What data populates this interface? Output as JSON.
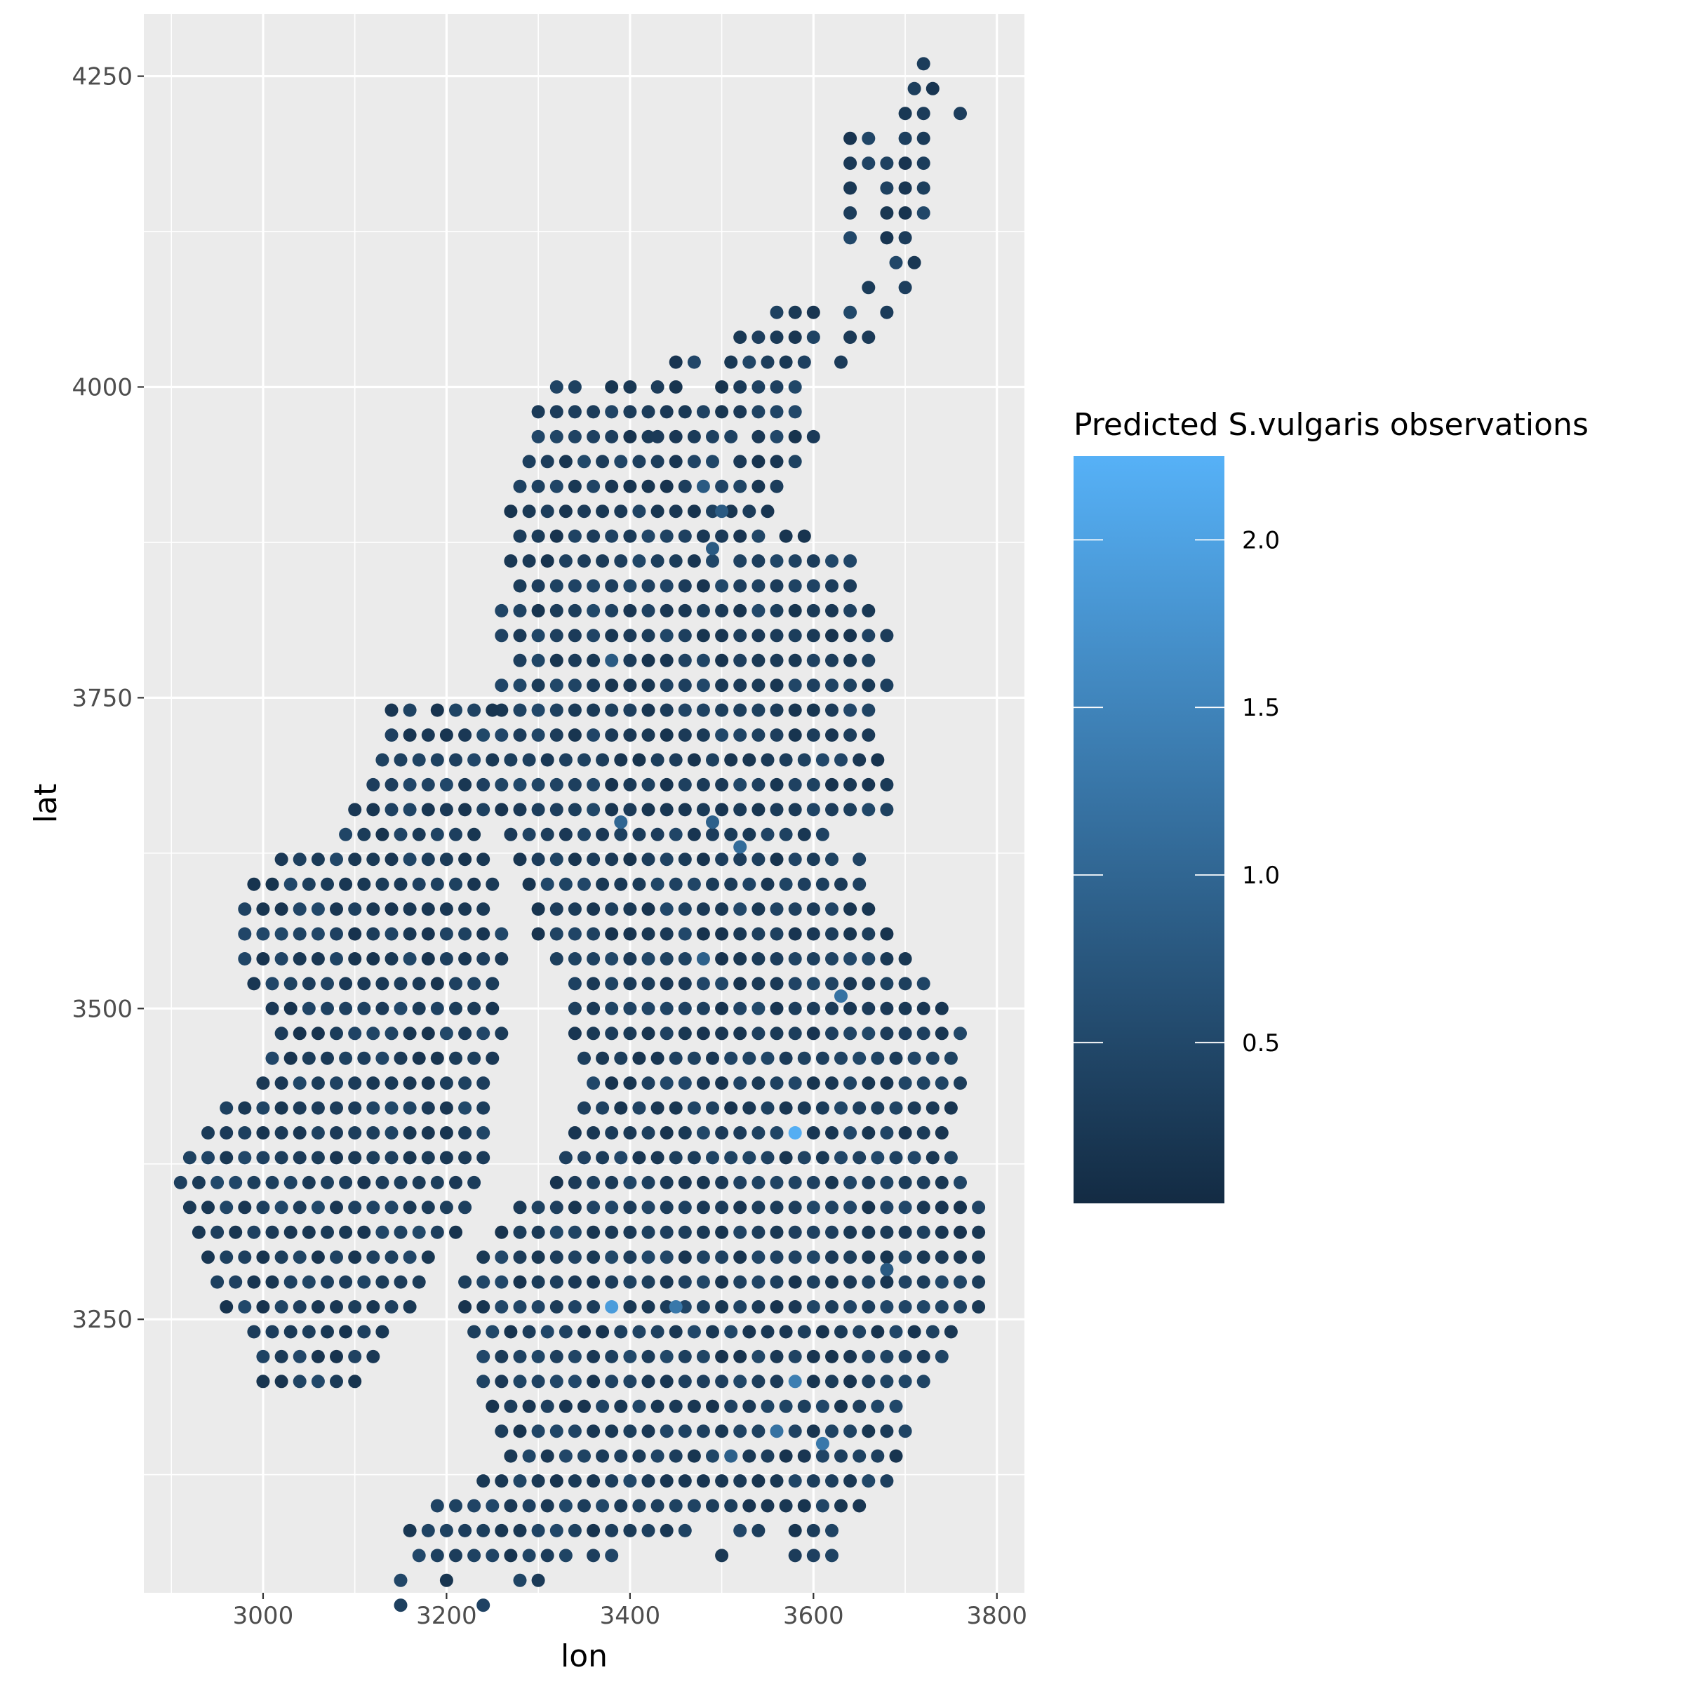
{
  "chart_data": {
    "type": "scatter",
    "title": "",
    "xlabel": "lon",
    "ylabel": "lat",
    "xlim": [
      2870,
      3830
    ],
    "ylim": [
      3030,
      4300
    ],
    "x_ticks": [
      3000,
      3200,
      3400,
      3600,
      3800
    ],
    "y_ticks": [
      3250,
      3500,
      3750,
      4000,
      4250
    ],
    "grid": true,
    "grid_step": 20,
    "legend": {
      "title": "Predicted S.vulgaris observations",
      "placement": "right",
      "type": "colorbar",
      "min": 0.02,
      "max": 2.25,
      "ticks": [
        0.5,
        1.0,
        1.5,
        2.0
      ],
      "tick_labels": [
        "0.5",
        "1.0",
        "1.5",
        "2.0"
      ],
      "color_low": "#132B43",
      "color_high": "#56B1F7"
    },
    "land_rows": [
      {
        "lat": 4260,
        "spans": [
          [
            3720,
            3720
          ]
        ]
      },
      {
        "lat": 4240,
        "spans": [
          [
            3710,
            3740
          ]
        ]
      },
      {
        "lat": 4220,
        "spans": [
          [
            3700,
            3730
          ],
          [
            3760,
            3760
          ]
        ]
      },
      {
        "lat": 4200,
        "spans": [
          [
            3640,
            3660
          ],
          [
            3700,
            3730
          ]
        ]
      },
      {
        "lat": 4180,
        "spans": [
          [
            3640,
            3660
          ],
          [
            3680,
            3730
          ]
        ]
      },
      {
        "lat": 4160,
        "spans": [
          [
            3640,
            3640
          ],
          [
            3680,
            3720
          ]
        ]
      },
      {
        "lat": 4140,
        "spans": [
          [
            3640,
            3640
          ],
          [
            3680,
            3720
          ]
        ]
      },
      {
        "lat": 4120,
        "spans": [
          [
            3640,
            3640
          ],
          [
            3680,
            3710
          ]
        ]
      },
      {
        "lat": 4100,
        "spans": [
          [
            3690,
            3710
          ]
        ]
      },
      {
        "lat": 4080,
        "spans": [
          [
            3660,
            3660
          ],
          [
            3700,
            3700
          ]
        ]
      },
      {
        "lat": 4060,
        "spans": [
          [
            3560,
            3600
          ],
          [
            3640,
            3640
          ],
          [
            3680,
            3680
          ]
        ]
      },
      {
        "lat": 4040,
        "spans": [
          [
            3520,
            3610
          ],
          [
            3640,
            3660
          ]
        ]
      },
      {
        "lat": 4020,
        "spans": [
          [
            3450,
            3470
          ],
          [
            3510,
            3600
          ],
          [
            3630,
            3630
          ]
        ]
      },
      {
        "lat": 4000,
        "spans": [
          [
            3320,
            3340
          ],
          [
            3380,
            3400
          ],
          [
            3430,
            3460
          ],
          [
            3500,
            3590
          ]
        ]
      },
      {
        "lat": 3980,
        "spans": [
          [
            3300,
            3360
          ],
          [
            3380,
            3410
          ],
          [
            3420,
            3520
          ],
          [
            3540,
            3590
          ]
        ]
      },
      {
        "lat": 3960,
        "spans": [
          [
            3300,
            3420
          ],
          [
            3430,
            3520
          ],
          [
            3540,
            3580
          ],
          [
            3600,
            3600
          ]
        ]
      },
      {
        "lat": 3940,
        "spans": [
          [
            3290,
            3500
          ],
          [
            3520,
            3580
          ]
        ]
      },
      {
        "lat": 3920,
        "spans": [
          [
            3280,
            3560
          ]
        ]
      },
      {
        "lat": 3900,
        "spans": [
          [
            3270,
            3510
          ],
          [
            3530,
            3560
          ]
        ]
      },
      {
        "lat": 3880,
        "spans": [
          [
            3280,
            3550
          ],
          [
            3570,
            3600
          ]
        ]
      },
      {
        "lat": 3860,
        "spans": [
          [
            3270,
            3500
          ],
          [
            3520,
            3640
          ]
        ]
      },
      {
        "lat": 3840,
        "spans": [
          [
            3280,
            3640
          ]
        ]
      },
      {
        "lat": 3820,
        "spans": [
          [
            3260,
            3660
          ]
        ]
      },
      {
        "lat": 3800,
        "spans": [
          [
            3260,
            3680
          ]
        ]
      },
      {
        "lat": 3780,
        "spans": [
          [
            3280,
            3660
          ]
        ]
      },
      {
        "lat": 3760,
        "spans": [
          [
            3260,
            3680
          ]
        ]
      },
      {
        "lat": 3740,
        "spans": [
          [
            3260,
            3670
          ]
        ]
      },
      {
        "lat": 3720,
        "spans": [
          [
            3260,
            3670
          ]
        ]
      },
      {
        "lat": 3700,
        "spans": [
          [
            3250,
            3680
          ]
        ]
      },
      {
        "lat": 3680,
        "spans": [
          [
            3260,
            3680
          ]
        ]
      },
      {
        "lat": 3660,
        "spans": [
          [
            3260,
            3680
          ]
        ]
      },
      {
        "lat": 3640,
        "spans": [
          [
            3270,
            3620
          ]
        ]
      },
      {
        "lat": 3620,
        "spans": [
          [
            3280,
            3620
          ],
          [
            3650,
            3660
          ]
        ]
      },
      {
        "lat": 3600,
        "spans": [
          [
            3290,
            3660
          ]
        ]
      },
      {
        "lat": 3580,
        "spans": [
          [
            3300,
            3670
          ]
        ]
      },
      {
        "lat": 3560,
        "spans": [
          [
            3300,
            3690
          ]
        ]
      },
      {
        "lat": 3540,
        "spans": [
          [
            3320,
            3700
          ]
        ]
      },
      {
        "lat": 3520,
        "spans": [
          [
            3340,
            3720
          ]
        ]
      },
      {
        "lat": 3500,
        "spans": [
          [
            3340,
            3740
          ]
        ]
      },
      {
        "lat": 3480,
        "spans": [
          [
            3340,
            3760
          ]
        ]
      },
      {
        "lat": 3460,
        "spans": [
          [
            3350,
            3750
          ]
        ]
      },
      {
        "lat": 3440,
        "spans": [
          [
            3360,
            3760
          ]
        ]
      },
      {
        "lat": 3420,
        "spans": [
          [
            3350,
            3750
          ]
        ]
      },
      {
        "lat": 3400,
        "spans": [
          [
            3340,
            3740
          ]
        ]
      },
      {
        "lat": 3380,
        "spans": [
          [
            3330,
            3760
          ]
        ]
      },
      {
        "lat": 3360,
        "spans": [
          [
            3320,
            3760
          ]
        ]
      },
      {
        "lat": 3340,
        "spans": [
          [
            3280,
            3780
          ]
        ]
      },
      {
        "lat": 3320,
        "spans": [
          [
            3260,
            3780
          ]
        ]
      },
      {
        "lat": 3300,
        "spans": [
          [
            3240,
            3790
          ]
        ]
      },
      {
        "lat": 3280,
        "spans": [
          [
            3220,
            3790
          ]
        ]
      },
      {
        "lat": 3260,
        "spans": [
          [
            3220,
            3780
          ]
        ]
      },
      {
        "lat": 3240,
        "spans": [
          [
            3230,
            3760
          ]
        ]
      },
      {
        "lat": 3220,
        "spans": [
          [
            3240,
            3740
          ]
        ]
      },
      {
        "lat": 3200,
        "spans": [
          [
            3240,
            3720
          ]
        ]
      },
      {
        "lat": 3180,
        "spans": [
          [
            3250,
            3700
          ]
        ]
      },
      {
        "lat": 3160,
        "spans": [
          [
            3260,
            3700
          ]
        ]
      },
      {
        "lat": 3140,
        "spans": [
          [
            3270,
            3700
          ]
        ]
      },
      {
        "lat": 3120,
        "spans": [
          [
            3240,
            3680
          ]
        ]
      },
      {
        "lat": 3100,
        "spans": [
          [
            3190,
            3660
          ]
        ]
      },
      {
        "lat": 3080,
        "spans": [
          [
            3160,
            3420
          ],
          [
            3440,
            3460
          ],
          [
            3520,
            3540
          ],
          [
            3580,
            3620
          ]
        ]
      },
      {
        "lat": 3060,
        "spans": [
          [
            3170,
            3330
          ],
          [
            3360,
            3390
          ],
          [
            3500,
            3500
          ],
          [
            3580,
            3600
          ],
          [
            3620,
            3620
          ]
        ]
      },
      {
        "lat": 3040,
        "spans": [
          [
            3150,
            3150
          ],
          [
            3200,
            3210
          ],
          [
            3280,
            3300
          ]
        ]
      },
      {
        "lat": 3020,
        "spans": [
          [
            3150,
            3150
          ],
          [
            3240,
            3250
          ]
        ]
      },
      {
        "lat": 3000,
        "spans": []
      },
      {
        "lat": 3740,
        "spans": [
          [
            3140,
            3160
          ],
          [
            3190,
            3210
          ],
          [
            3230,
            3250
          ]
        ]
      },
      {
        "lat": 3720,
        "spans": [
          [
            3140,
            3250
          ]
        ]
      },
      {
        "lat": 3700,
        "spans": [
          [
            3130,
            3240
          ]
        ]
      },
      {
        "lat": 3680,
        "spans": [
          [
            3120,
            3240
          ]
        ]
      },
      {
        "lat": 3660,
        "spans": [
          [
            3100,
            3240
          ]
        ]
      },
      {
        "lat": 3640,
        "spans": [
          [
            3090,
            3240
          ]
        ]
      },
      {
        "lat": 3620,
        "spans": [
          [
            3020,
            3060
          ],
          [
            3080,
            3250
          ]
        ]
      },
      {
        "lat": 3600,
        "spans": [
          [
            2990,
            3250
          ]
        ]
      },
      {
        "lat": 3580,
        "spans": [
          [
            2980,
            3250
          ]
        ]
      },
      {
        "lat": 3560,
        "spans": [
          [
            2980,
            3270
          ]
        ]
      },
      {
        "lat": 3540,
        "spans": [
          [
            2980,
            3270
          ]
        ]
      },
      {
        "lat": 3520,
        "spans": [
          [
            2990,
            3260
          ]
        ]
      },
      {
        "lat": 3500,
        "spans": [
          [
            3010,
            3260
          ]
        ]
      },
      {
        "lat": 3480,
        "spans": [
          [
            3020,
            3260
          ]
        ]
      },
      {
        "lat": 3460,
        "spans": [
          [
            3010,
            3250
          ]
        ]
      },
      {
        "lat": 3440,
        "spans": [
          [
            3000,
            3250
          ]
        ]
      },
      {
        "lat": 3420,
        "spans": [
          [
            2960,
            3250
          ]
        ]
      },
      {
        "lat": 3400,
        "spans": [
          [
            2940,
            3250
          ]
        ]
      },
      {
        "lat": 3380,
        "spans": [
          [
            2920,
            3250
          ]
        ]
      },
      {
        "lat": 3360,
        "spans": [
          [
            2910,
            3240
          ]
        ]
      },
      {
        "lat": 3340,
        "spans": [
          [
            2920,
            3230
          ]
        ]
      },
      {
        "lat": 3320,
        "spans": [
          [
            2930,
            3210
          ]
        ]
      },
      {
        "lat": 3300,
        "spans": [
          [
            2940,
            3180
          ]
        ]
      },
      {
        "lat": 3280,
        "spans": [
          [
            2950,
            3170
          ]
        ]
      },
      {
        "lat": 3260,
        "spans": [
          [
            2960,
            3160
          ]
        ]
      },
      {
        "lat": 3240,
        "spans": [
          [
            2990,
            3140
          ]
        ]
      },
      {
        "lat": 3220,
        "spans": [
          [
            3000,
            3130
          ]
        ]
      },
      {
        "lat": 3200,
        "spans": [
          [
            3000,
            3100
          ]
        ]
      }
    ],
    "hotspots": [
      {
        "lon": 3580,
        "lat": 3400,
        "value": 2.2
      },
      {
        "lon": 3380,
        "lat": 3260,
        "value": 1.9
      },
      {
        "lon": 3450,
        "lat": 3260,
        "value": 1.3
      },
      {
        "lon": 3580,
        "lat": 3200,
        "value": 1.4
      },
      {
        "lon": 3560,
        "lat": 3160,
        "value": 1.2
      },
      {
        "lon": 3610,
        "lat": 3150,
        "value": 1.3
      },
      {
        "lon": 3630,
        "lat": 3510,
        "value": 1.2
      },
      {
        "lon": 3520,
        "lat": 3630,
        "value": 1.1
      },
      {
        "lon": 3390,
        "lat": 3650,
        "value": 1.0
      },
      {
        "lon": 3490,
        "lat": 3650,
        "value": 0.9
      },
      {
        "lon": 3480,
        "lat": 3540,
        "value": 0.9
      },
      {
        "lon": 3480,
        "lat": 3920,
        "value": 0.8
      },
      {
        "lon": 3500,
        "lat": 3900,
        "value": 0.8
      },
      {
        "lon": 3490,
        "lat": 3870,
        "value": 0.8
      },
      {
        "lon": 3380,
        "lat": 3780,
        "value": 0.8
      },
      {
        "lon": 3680,
        "lat": 3290,
        "value": 0.8
      },
      {
        "lon": 3510,
        "lat": 3140,
        "value": 0.9
      }
    ]
  }
}
